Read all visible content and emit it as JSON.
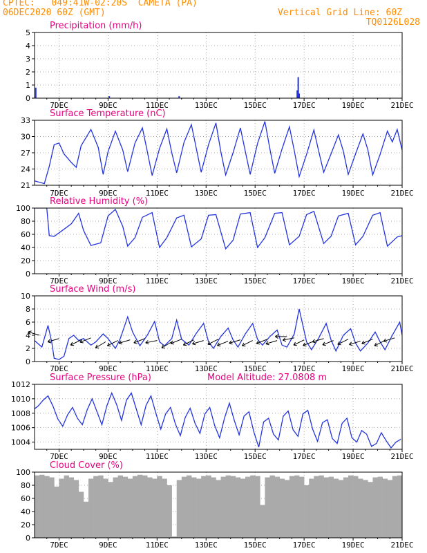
{
  "header": {
    "source": "CPTEC:",
    "coords": "049:41W-02:20S",
    "location": "CAMETA (PA)",
    "run": "06DEC2020 60Z (GMT)",
    "vertical_grid": "Vertical Grid Line: 60Z",
    "code": "TQ0126L028"
  },
  "colors": {
    "line": "#2233dd",
    "bar": "#2233dd",
    "cloud": "#aaaaaa",
    "title": "#e6007e",
    "header": "#ff8c00"
  },
  "chart_data": [
    {
      "type": "bar",
      "title": "Precipitation (mm/h)",
      "xlabel": "",
      "ylabel": "",
      "xlim": [
        6,
        21
      ],
      "ylim": [
        0,
        5
      ],
      "yticks": [
        0,
        1,
        2,
        3,
        4,
        5
      ],
      "xticks": [
        "7DEC",
        "9DEC",
        "11DEC",
        "13DEC",
        "15DEC",
        "17DEC",
        "19DEC",
        "21DEC"
      ],
      "x": [
        6.05,
        9.05,
        11.9,
        16.72,
        16.76,
        16.8
      ],
      "values": [
        0.8,
        0.15,
        0.15,
        0.6,
        1.6,
        0.35
      ]
    },
    {
      "type": "line",
      "title": "Surface Temperature (nC)",
      "xlim": [
        6,
        21
      ],
      "ylim": [
        21,
        33
      ],
      "yticks": [
        21,
        24,
        27,
        30,
        33
      ],
      "xticks": [
        "7DEC",
        "9DEC",
        "11DEC",
        "13DEC",
        "15DEC",
        "17DEC",
        "19DEC",
        "21DEC"
      ],
      "x": [
        6.0,
        6.4,
        6.6,
        6.8,
        7.0,
        7.2,
        7.5,
        7.7,
        7.9,
        8.3,
        8.6,
        8.8,
        9.0,
        9.3,
        9.6,
        9.8,
        10.1,
        10.4,
        10.6,
        10.8,
        11.1,
        11.4,
        11.6,
        11.8,
        12.1,
        12.4,
        12.6,
        12.8,
        13.1,
        13.4,
        13.6,
        13.8,
        14.1,
        14.4,
        14.6,
        14.8,
        15.1,
        15.4,
        15.6,
        15.8,
        16.1,
        16.4,
        16.6,
        16.8,
        17.1,
        17.4,
        17.6,
        17.8,
        18.1,
        18.4,
        18.6,
        18.8,
        19.1,
        19.4,
        19.6,
        19.8,
        20.1,
        20.4,
        20.6,
        20.8,
        21.0
      ],
      "values": [
        21.8,
        21.3,
        24.5,
        28.5,
        28.8,
        26.8,
        25.2,
        24.3,
        28.3,
        31.3,
        28.0,
        23.0,
        27.2,
        31.0,
        27.5,
        23.5,
        28.8,
        31.6,
        27.3,
        22.8,
        27.8,
        31.4,
        27.0,
        23.3,
        28.9,
        32.2,
        27.8,
        23.4,
        28.5,
        32.5,
        27.3,
        22.9,
        27.0,
        31.6,
        27.3,
        23.0,
        28.7,
        32.8,
        27.8,
        23.2,
        27.7,
        31.8,
        27.4,
        22.6,
        26.7,
        31.2,
        27.2,
        23.4,
        26.8,
        30.3,
        27.3,
        23.0,
        26.8,
        30.5,
        27.6,
        22.9,
        26.7,
        31.0,
        29.0,
        31.3,
        27.5
      ]
    },
    {
      "type": "line",
      "title": "Relative Humidity (%)",
      "xlim": [
        6,
        21
      ],
      "ylim": [
        0,
        100
      ],
      "yticks": [
        0,
        20,
        40,
        60,
        80,
        100
      ],
      "xticks": [
        "7DEC",
        "9DEC",
        "11DEC",
        "13DEC",
        "15DEC",
        "17DEC",
        "19DEC",
        "21DEC"
      ],
      "x": [
        6.0,
        6.5,
        6.6,
        6.8,
        7.1,
        7.5,
        7.8,
        8.0,
        8.3,
        8.7,
        9.0,
        9.3,
        9.6,
        9.8,
        10.1,
        10.4,
        10.8,
        11.1,
        11.4,
        11.8,
        12.1,
        12.4,
        12.8,
        13.1,
        13.4,
        13.8,
        14.1,
        14.4,
        14.8,
        15.1,
        15.4,
        15.8,
        16.1,
        16.4,
        16.8,
        17.1,
        17.4,
        17.8,
        18.1,
        18.4,
        18.8,
        19.1,
        19.4,
        19.8,
        20.1,
        20.4,
        20.8,
        21.0
      ],
      "values": [
        100,
        100,
        58,
        57,
        65,
        76,
        92,
        66,
        43,
        47,
        88,
        98,
        72,
        42,
        55,
        86,
        93,
        40,
        55,
        85,
        89,
        41,
        53,
        89,
        90,
        38,
        51,
        91,
        93,
        40,
        55,
        92,
        93,
        44,
        57,
        90,
        95,
        46,
        57,
        88,
        92,
        44,
        57,
        89,
        93,
        42,
        56,
        58
      ]
    },
    {
      "type": "line",
      "title": "Surface Wind (m/s)",
      "xlim": [
        6,
        21
      ],
      "ylim": [
        0,
        10
      ],
      "yticks": [
        0,
        2,
        4,
        6,
        8,
        10
      ],
      "xticks": [
        "7DEC",
        "9DEC",
        "11DEC",
        "13DEC",
        "15DEC",
        "17DEC",
        "19DEC",
        "21DEC"
      ],
      "x": [
        6.0,
        6.3,
        6.55,
        6.7,
        6.8,
        7.0,
        7.2,
        7.4,
        7.6,
        7.8,
        8.0,
        8.3,
        8.5,
        8.8,
        9.0,
        9.3,
        9.5,
        9.8,
        10.0,
        10.3,
        10.6,
        10.9,
        11.1,
        11.3,
        11.6,
        11.8,
        12.0,
        12.3,
        12.6,
        12.9,
        13.1,
        13.3,
        13.6,
        13.9,
        14.1,
        14.3,
        14.6,
        14.9,
        15.1,
        15.3,
        15.6,
        15.9,
        16.1,
        16.3,
        16.6,
        16.8,
        17.1,
        17.3,
        17.6,
        17.9,
        18.1,
        18.3,
        18.6,
        18.9,
        19.1,
        19.3,
        19.6,
        19.9,
        20.1,
        20.3,
        20.6,
        20.9,
        21.0
      ],
      "values": [
        3.2,
        2.2,
        5.5,
        3.0,
        0.5,
        0.3,
        0.8,
        3.5,
        4.0,
        3.2,
        3.5,
        2.5,
        3.0,
        4.2,
        3.5,
        2.0,
        3.5,
        6.8,
        4.5,
        2.4,
        4.0,
        6.1,
        3.0,
        2.4,
        3.5,
        6.3,
        3.4,
        2.5,
        4.3,
        5.8,
        3.0,
        2.0,
        3.8,
        5.1,
        3.3,
        2.2,
        4.2,
        5.8,
        3.4,
        2.5,
        3.8,
        4.8,
        2.5,
        2.2,
        4.2,
        8.0,
        3.0,
        1.8,
        3.6,
        5.8,
        3.3,
        1.6,
        4.0,
        5.0,
        2.8,
        1.6,
        2.8,
        4.5,
        3.0,
        1.8,
        4.0,
        6.0,
        4.0
      ]
    },
    {
      "type": "line",
      "title": "Surface Pressure (hPa)",
      "annotation": "Model Altitude: 27.0808 m",
      "xlim": [
        6,
        21
      ],
      "ylim": [
        1003,
        1012
      ],
      "yticks": [
        1004,
        1006,
        1008,
        1010,
        1012
      ],
      "xticks": [
        "7DEC",
        "9DEC",
        "11DEC",
        "13DEC",
        "15DEC",
        "17DEC",
        "19DEC",
        "21DEC"
      ],
      "x": [
        6.0,
        6.15,
        6.35,
        6.55,
        6.75,
        6.95,
        7.15,
        7.35,
        7.55,
        7.75,
        7.95,
        8.15,
        8.35,
        8.55,
        8.75,
        8.95,
        9.15,
        9.35,
        9.55,
        9.75,
        9.95,
        10.15,
        10.35,
        10.55,
        10.75,
        10.95,
        11.15,
        11.35,
        11.55,
        11.75,
        11.95,
        12.15,
        12.35,
        12.55,
        12.75,
        12.95,
        13.15,
        13.35,
        13.55,
        13.75,
        13.95,
        14.15,
        14.35,
        14.55,
        14.75,
        14.95,
        15.15,
        15.35,
        15.55,
        15.75,
        15.95,
        16.15,
        16.35,
        16.55,
        16.75,
        16.95,
        17.15,
        17.35,
        17.55,
        17.75,
        17.95,
        18.15,
        18.35,
        18.55,
        18.75,
        18.95,
        19.15,
        19.35,
        19.55,
        19.75,
        19.95,
        20.15,
        20.35,
        20.55,
        20.75,
        20.95
      ],
      "values": [
        1008.6,
        1009.0,
        1009.8,
        1010.4,
        1009.0,
        1007.2,
        1006.2,
        1007.8,
        1008.8,
        1007.3,
        1006.4,
        1008.5,
        1010.0,
        1008.2,
        1006.4,
        1009.0,
        1010.8,
        1009.2,
        1007.0,
        1009.8,
        1010.8,
        1008.6,
        1006.4,
        1009.1,
        1010.4,
        1008.0,
        1005.8,
        1007.9,
        1008.8,
        1006.5,
        1004.9,
        1007.4,
        1008.7,
        1006.6,
        1005.2,
        1007.9,
        1008.8,
        1006.3,
        1004.6,
        1007.3,
        1009.4,
        1007.0,
        1005.0,
        1007.6,
        1008.2,
        1005.4,
        1003.3,
        1006.8,
        1007.3,
        1005.1,
        1004.3,
        1007.6,
        1008.3,
        1005.7,
        1004.8,
        1007.9,
        1008.4,
        1005.8,
        1004.1,
        1006.7,
        1007.1,
        1004.5,
        1003.8,
        1006.6,
        1007.3,
        1004.6,
        1004.0,
        1005.6,
        1005.1,
        1003.4,
        1003.8,
        1005.3,
        1004.2,
        1003.2,
        1004.0,
        1004.4
      ]
    },
    {
      "type": "bar",
      "title": "Cloud Cover (%)",
      "xlim": [
        6,
        21
      ],
      "ylim": [
        0,
        100
      ],
      "yticks": [
        0,
        20,
        40,
        60,
        80,
        100
      ],
      "xticks": [
        "7DEC",
        "9DEC",
        "11DEC",
        "13DEC",
        "15DEC",
        "17DEC",
        "19DEC",
        "21DEC"
      ],
      "x": [
        6.0,
        6.2,
        6.4,
        6.6,
        6.8,
        7.0,
        7.2,
        7.4,
        7.6,
        7.8,
        8.0,
        8.2,
        8.4,
        8.6,
        8.8,
        9.0,
        9.2,
        9.4,
        9.6,
        9.8,
        10.0,
        10.2,
        10.4,
        10.6,
        10.8,
        11.0,
        11.2,
        11.4,
        11.6,
        11.8,
        12.0,
        12.2,
        12.4,
        12.6,
        12.8,
        13.0,
        13.2,
        13.4,
        13.6,
        13.8,
        14.0,
        14.2,
        14.4,
        14.6,
        14.8,
        15.0,
        15.2,
        15.4,
        15.6,
        15.8,
        16.0,
        16.2,
        16.4,
        16.6,
        16.8,
        17.0,
        17.2,
        17.4,
        17.6,
        17.8,
        18.0,
        18.2,
        18.4,
        18.6,
        18.8,
        19.0,
        19.2,
        19.4,
        19.6,
        19.8,
        20.0,
        20.2,
        20.4,
        20.6,
        20.8
      ],
      "values": [
        95,
        96,
        94,
        92,
        78,
        90,
        95,
        92,
        88,
        70,
        55,
        90,
        94,
        95,
        90,
        85,
        92,
        95,
        93,
        90,
        94,
        96,
        95,
        92,
        90,
        94,
        90,
        80,
        2,
        88,
        93,
        95,
        92,
        90,
        94,
        95,
        92,
        88,
        93,
        95,
        94,
        92,
        90,
        93,
        95,
        94,
        50,
        92,
        95,
        93,
        90,
        88,
        94,
        95,
        93,
        80,
        90,
        94,
        95,
        92,
        93,
        90,
        88,
        92,
        95,
        94,
        90,
        88,
        85,
        92,
        93,
        90,
        88,
        94,
        95
      ]
    }
  ],
  "wind_arrows": {
    "x": [
      6.2,
      7.0,
      7.9,
      8.3,
      8.9,
      9.4,
      9.9,
      10.5,
      11.0,
      11.6,
      12.0,
      12.5,
      12.9,
      13.5,
      13.9,
      14.4,
      14.9,
      15.5,
      15.9,
      16.3,
      16.6,
      17.0,
      17.4,
      17.8,
      18.2,
      18.8,
      19.3,
      19.8,
      20.3,
      20.7
    ],
    "y": [
      4.0,
      3.5,
      3.3,
      3.6,
      3.0,
      3.2,
      3.3,
      3.5,
      3.2,
      3.0,
      3.4,
      3.3,
      3.2,
      3.4,
      3.1,
      3.3,
      3.2,
      3.4,
      3.2,
      3.8,
      3.6,
      3.3,
      3.1,
      3.5,
      3.2,
      3.4,
      3.1,
      3.4,
      3.2,
      3.6
    ],
    "u": [
      -1.0,
      -1.0,
      -1.0,
      -1.0,
      -1.0,
      -1.0,
      -1.0,
      -1.0,
      -1.0,
      -1.0,
      -1.0,
      -1.0,
      -1.0,
      -1.0,
      -1.0,
      -1.0,
      -1.0,
      -1.0,
      -1.0,
      -1.0,
      -1.0,
      -1.0,
      -1.0,
      -1.0,
      -1.0,
      -1.0,
      -1.0,
      -1.0,
      -1.0,
      -1.0
    ],
    "v": [
      0.3,
      -0.3,
      -0.5,
      -0.4,
      -0.6,
      -0.5,
      -0.3,
      -0.4,
      -0.2,
      -0.6,
      -0.4,
      -0.5,
      -0.3,
      -0.5,
      -0.4,
      -0.3,
      -0.5,
      -0.4,
      -0.3,
      0.0,
      -0.2,
      -0.5,
      -0.4,
      -0.3,
      -0.4,
      -0.5,
      -0.3,
      -0.4,
      -0.5,
      -0.3
    ]
  }
}
